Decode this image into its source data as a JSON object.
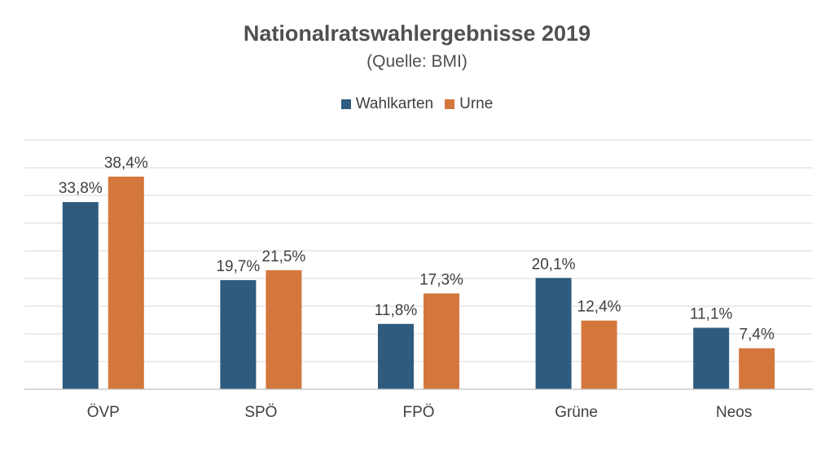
{
  "chart_data": {
    "type": "bar",
    "title": "Nationalratswahlergebnisse 2019",
    "subtitle": "(Quelle: BMI)",
    "categories": [
      "ÖVP",
      "SPÖ",
      "FPÖ",
      "Grüne",
      "Neos"
    ],
    "series": [
      {
        "name": "Wahlkarten",
        "color": "#2e5b7e",
        "values": [
          33.8,
          19.7,
          11.8,
          20.1,
          11.1
        ],
        "labels": [
          "33,8%",
          "19,7%",
          "11,8%",
          "20,1%",
          "11,1%"
        ]
      },
      {
        "name": "Urne",
        "color": "#d4773d",
        "values": [
          38.4,
          21.5,
          17.3,
          12.4,
          7.4
        ],
        "labels": [
          "38,4%",
          "21,5%",
          "17,3%",
          "12,4%",
          "7,4%"
        ]
      }
    ],
    "ylim": [
      0,
      45
    ],
    "grid": true,
    "legend_position": "top"
  }
}
